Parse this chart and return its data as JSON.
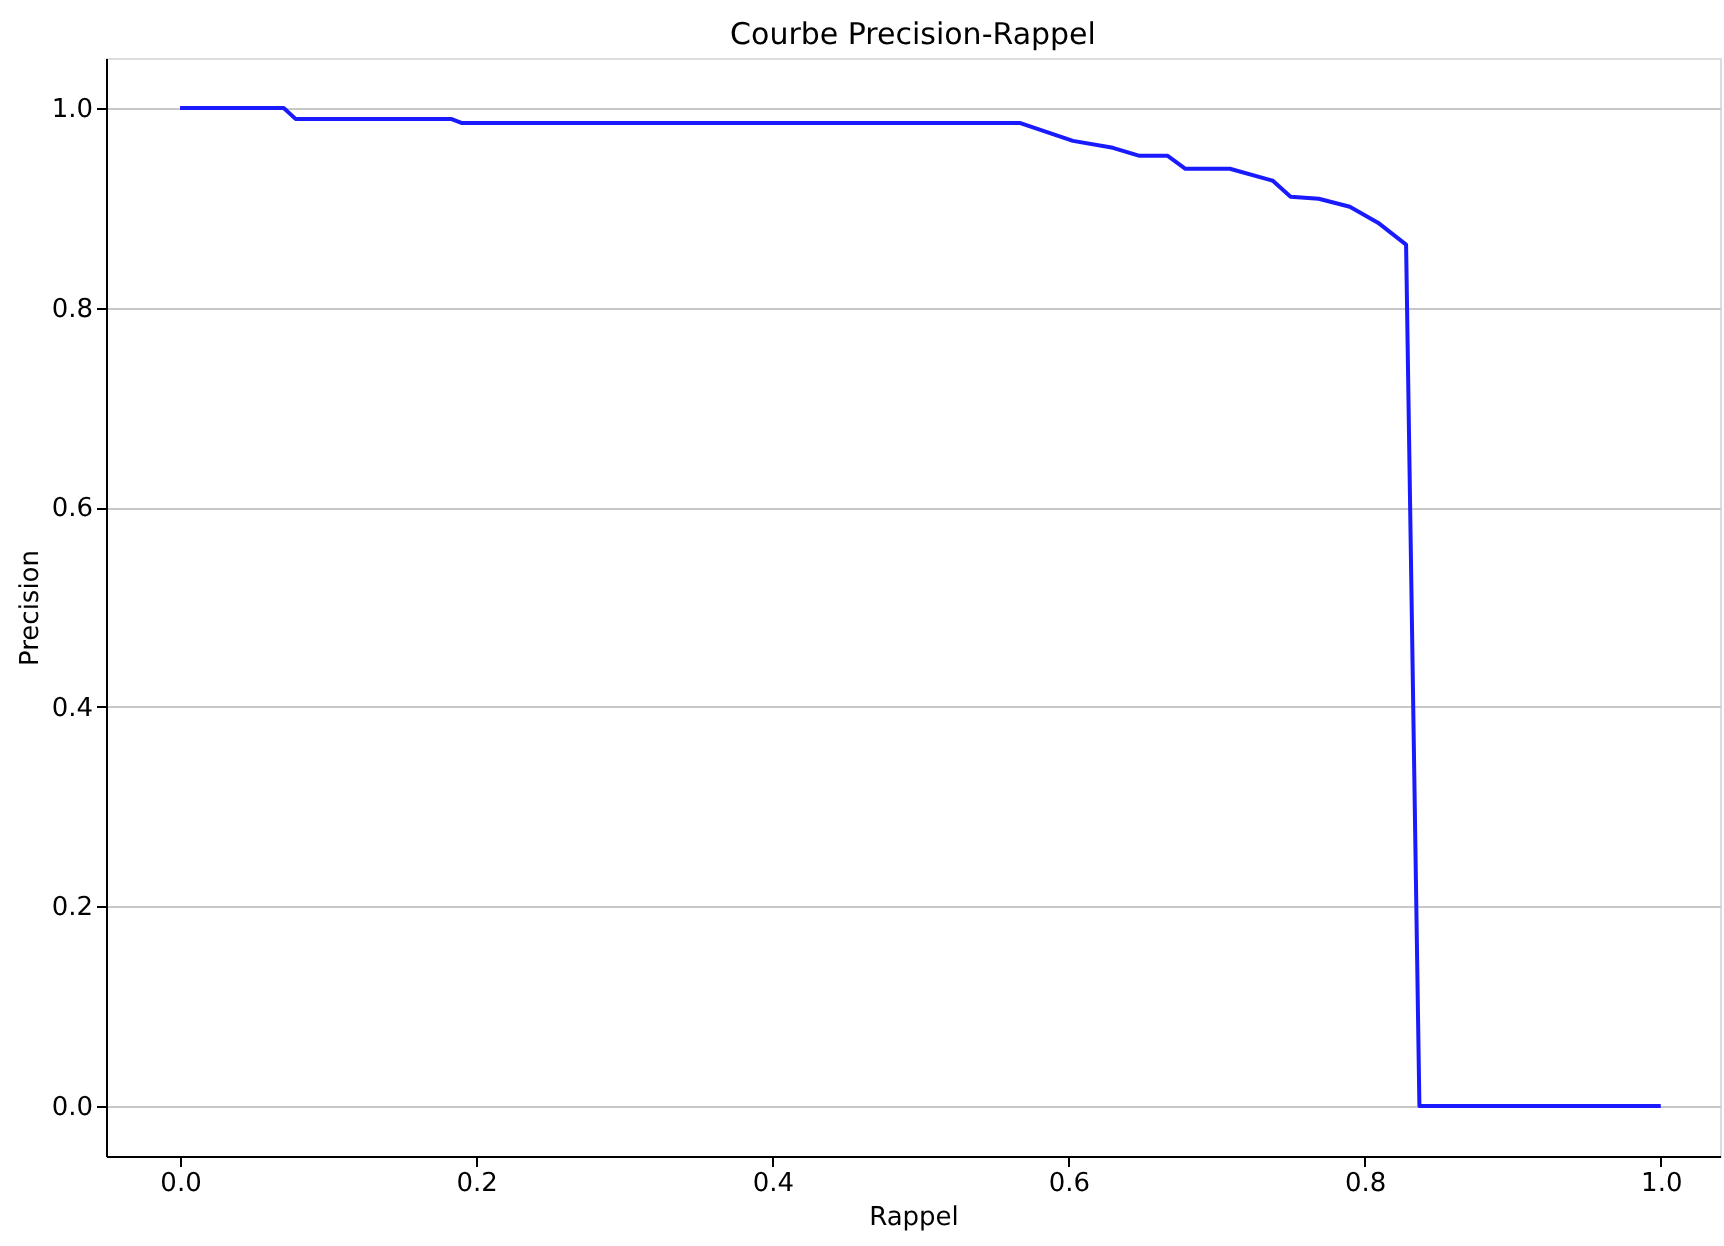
{
  "chart_data": {
    "type": "line",
    "title": "Courbe Precision-Rappel",
    "xlabel": "Rappel",
    "ylabel": "Precision",
    "x": [
      0,
      0.07,
      0.078,
      0.183,
      0.19,
      0.567,
      0.591,
      0.603,
      0.63,
      0.648,
      0.667,
      0.679,
      0.709,
      0.738,
      0.75,
      0.769,
      0.79,
      0.809,
      0.828,
      0.837,
      1.0
    ],
    "series": [
      {
        "color": "#1a1aff",
        "values": [
          1.0,
          1.0,
          0.989,
          0.989,
          0.985,
          0.985,
          0.973,
          0.967,
          0.96,
          0.952,
          0.952,
          0.939,
          0.939,
          0.927,
          0.911,
          0.909,
          0.901,
          0.885,
          0.863,
          0,
          0
        ]
      }
    ],
    "xlim": [
      -0.05,
      1.04
    ],
    "ylim": [
      -0.05,
      1.05
    ],
    "xticks": [
      {
        "value": 0,
        "label": "0.0"
      },
      0.2,
      0.4,
      0.6,
      0.8,
      {
        "value": 1,
        "label": "1.0"
      }
    ],
    "yticks": [
      {
        "value": 0,
        "label": "0.0"
      },
      0.2,
      0.4,
      0.6,
      0.8,
      {
        "value": 1,
        "label": "1.0"
      }
    ],
    "grid": "y",
    "marker": "none",
    "line_style": "solid"
  }
}
